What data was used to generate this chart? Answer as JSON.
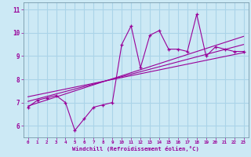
{
  "xlabel": "Windchill (Refroidissement éolien,°C)",
  "bg_color": "#cce9f5",
  "grid_color": "#aad4e8",
  "line_color": "#990099",
  "xmin": -0.5,
  "xmax": 23.5,
  "ymin": 5.5,
  "ymax": 11.3,
  "xticks": [
    0,
    1,
    2,
    3,
    4,
    5,
    6,
    7,
    8,
    9,
    10,
    11,
    12,
    13,
    14,
    15,
    16,
    17,
    18,
    19,
    20,
    21,
    22,
    23
  ],
  "yticks": [
    6,
    7,
    8,
    9,
    10,
    11
  ],
  "data_x": [
    0,
    1,
    2,
    3,
    4,
    5,
    6,
    7,
    8,
    9,
    10,
    11,
    12,
    13,
    14,
    15,
    16,
    17,
    18,
    19,
    20,
    21,
    22,
    23
  ],
  "data_y": [
    6.8,
    7.1,
    7.2,
    7.3,
    7.0,
    5.8,
    6.3,
    6.8,
    6.9,
    7.0,
    9.5,
    10.3,
    8.5,
    9.9,
    10.1,
    9.3,
    9.3,
    9.2,
    10.8,
    9.0,
    9.4,
    9.3,
    9.2,
    9.2
  ],
  "line1_x": [
    0,
    23
  ],
  "line1_y": [
    7.25,
    9.15
  ],
  "line2_x": [
    0,
    23
  ],
  "line2_y": [
    7.05,
    9.5
  ],
  "line3_x": [
    0,
    23
  ],
  "line3_y": [
    6.85,
    9.85
  ]
}
